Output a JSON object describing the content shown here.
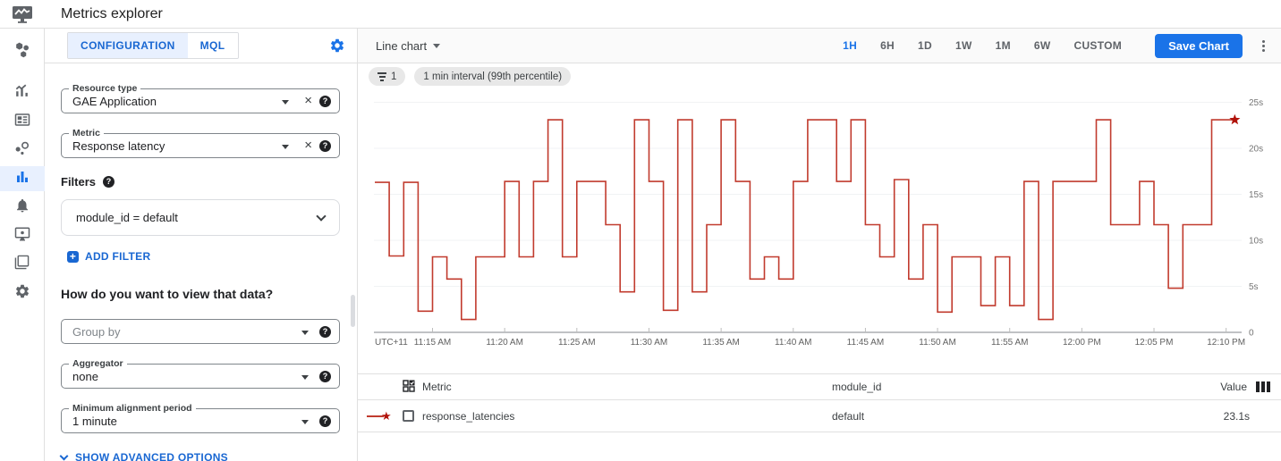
{
  "header": {
    "title": "Metrics explorer"
  },
  "sidebar": {
    "active_item": "metrics-explorer",
    "items": [
      "overview",
      "metrics",
      "dashboards",
      "services",
      "metrics-explorer",
      "alerting",
      "uptime-checks",
      "groups",
      "settings"
    ]
  },
  "config": {
    "tabs": [
      {
        "label": "CONFIGURATION",
        "active": true
      },
      {
        "label": "MQL",
        "active": false
      }
    ],
    "resource_type": {
      "label": "Resource type",
      "value": "GAE Application"
    },
    "metric": {
      "label": "Metric",
      "value": "Response latency"
    },
    "filters": {
      "heading": "Filters",
      "items": [
        {
          "value": "module_id = default"
        }
      ],
      "add_label": "ADD FILTER"
    },
    "view_heading": "How do you want to view that data?",
    "group_by": {
      "placeholder": "Group by"
    },
    "aggregator": {
      "label": "Aggregator",
      "value": "none"
    },
    "min_alignment_period": {
      "label": "Minimum alignment period",
      "value": "1 minute"
    },
    "advanced_link": "SHOW ADVANCED OPTIONS"
  },
  "chart_toolbar": {
    "chart_type": "Line chart",
    "time_ranges": [
      "1H",
      "6H",
      "1D",
      "1W",
      "1M",
      "6W",
      "CUSTOM"
    ],
    "active_range": "1H",
    "save_label": "Save Chart"
  },
  "chips": [
    {
      "icon": "filter-icon",
      "label": "1"
    },
    {
      "label": "1 min interval (99th percentile)"
    }
  ],
  "chart_data": {
    "type": "line",
    "line_style": "step",
    "x_start_label": "11:11 AM",
    "interval_minutes": 1,
    "tz_label": "UTC+11",
    "x_ticks": [
      "11:15 AM",
      "11:20 AM",
      "11:25 AM",
      "11:30 AM",
      "11:35 AM",
      "11:40 AM",
      "11:45 AM",
      "11:50 AM",
      "11:55 AM",
      "12:00 PM",
      "12:05 PM",
      "12:10 PM"
    ],
    "y_ticks": [
      "0",
      "5s",
      "10s",
      "15s",
      "20s",
      "25s"
    ],
    "ylim": [
      0,
      26
    ],
    "grid": "horizontal",
    "legend_position": "table-below",
    "series": [
      {
        "name": "response_latencies",
        "color": "#c13b2e",
        "marker": "star",
        "marker_color": "#b0120a",
        "values": [
          16.3,
          8.3,
          16.3,
          2.3,
          8.2,
          5.8,
          1.4,
          8.2,
          8.2,
          16.4,
          8.2,
          16.4,
          23.1,
          8.2,
          16.4,
          16.4,
          11.7,
          4.4,
          23.1,
          16.4,
          2.4,
          23.1,
          4.4,
          11.7,
          23.1,
          16.4,
          5.8,
          8.2,
          5.8,
          16.4,
          23.1,
          23.1,
          16.4,
          23.1,
          11.7,
          8.2,
          16.6,
          5.8,
          11.7,
          2.2,
          8.2,
          8.2,
          2.9,
          8.2,
          2.9,
          16.4,
          1.4,
          16.4,
          16.4,
          16.4,
          23.1,
          11.7,
          11.7,
          16.4,
          11.7,
          4.8,
          11.7,
          11.7,
          23.1,
          23.1
        ]
      }
    ]
  },
  "table": {
    "columns": [
      "Metric",
      "module_id",
      "Value"
    ],
    "rows": [
      {
        "metric": "response_latencies",
        "module_id": "default",
        "value": "23.1s"
      }
    ]
  },
  "colors": {
    "accent": "#1a73e8",
    "link": "#1967d2",
    "active_tab_bg": "#e8f0fe",
    "series_red": "#c13b2e",
    "star_red": "#b0120a"
  }
}
